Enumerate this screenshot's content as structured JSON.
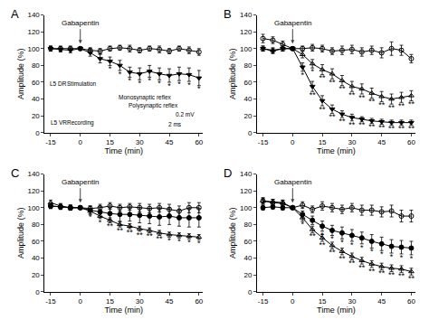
{
  "chart_data": [
    {
      "type": "line",
      "title": "A",
      "x_label": "Time (min)",
      "y_label": "Amplitude (%)",
      "x": [
        -15,
        -10,
        -5,
        0,
        5,
        10,
        15,
        20,
        25,
        30,
        35,
        40,
        45,
        50,
        55,
        60
      ],
      "xlim": [
        -18,
        62
      ],
      "xticks": [
        -15,
        0,
        15,
        30,
        45,
        60
      ],
      "ylim": [
        0,
        140
      ],
      "yticks": [
        0,
        20,
        40,
        60,
        80,
        100,
        120,
        140
      ],
      "grid": false,
      "series": [
        {
          "color": "#000000",
          "marker": "circle-open",
          "values": [
            100,
            100,
            100,
            100,
            98,
            97,
            100,
            101,
            100,
            98,
            100,
            99,
            97,
            100,
            98,
            96
          ],
          "errors": [
            3,
            3,
            3,
            2,
            3,
            3,
            3,
            3,
            4,
            3,
            3,
            4,
            3,
            3,
            4,
            4
          ]
        },
        {
          "color": "#000000",
          "marker": "triangle-down",
          "values": [
            100,
            99,
            98,
            100,
            95,
            88,
            85,
            80,
            72,
            70,
            73,
            70,
            68,
            70,
            69,
            65
          ],
          "errors": [
            3,
            3,
            3,
            2,
            4,
            5,
            5,
            6,
            6,
            7,
            7,
            7,
            8,
            8,
            8,
            9
          ],
          "significance": [
            null,
            null,
            null,
            null,
            null,
            null,
            "*",
            "*",
            "*",
            "*",
            "*",
            "*",
            "*",
            "*",
            "*",
            "*"
          ]
        }
      ],
      "annotations": [
        {
          "text": "Gabapentin",
          "x": 0,
          "y": 106,
          "arrow": true
        },
        {
          "text": "L5 DR",
          "x": -11,
          "y": 58
        },
        {
          "text": "Stimulation",
          "x": 1,
          "y": 58
        },
        {
          "text": "L5 VR",
          "x": -11,
          "y": 12
        },
        {
          "text": "Recording",
          "x": 0,
          "y": 12
        },
        {
          "text": "Monosynaptic reflex",
          "x": 33,
          "y": 42
        },
        {
          "text": "Polysynaptic reflex",
          "x": 37,
          "y": 32
        },
        {
          "text": "0.2 mV",
          "x": 53,
          "y": 22
        },
        {
          "text": "2 ms",
          "x": 48,
          "y": 10
        }
      ]
    },
    {
      "type": "line",
      "title": "B",
      "x_label": "Time (min)",
      "y_label": "Amplitude (%)",
      "x": [
        -15,
        -10,
        -5,
        0,
        5,
        10,
        15,
        20,
        25,
        30,
        35,
        40,
        45,
        50,
        55,
        60
      ],
      "xlim": [
        -18,
        62
      ],
      "xticks": [
        -15,
        0,
        15,
        30,
        45,
        60
      ],
      "ylim": [
        0,
        140
      ],
      "yticks": [
        0,
        20,
        40,
        60,
        80,
        100,
        120,
        140
      ],
      "grid": false,
      "series": [
        {
          "color": "#000000",
          "marker": "circle-open",
          "values": [
            112,
            110,
            105,
            100,
            100,
            101,
            100,
            97,
            98,
            99,
            96,
            98,
            95,
            100,
            98,
            88
          ],
          "errors": [
            5,
            4,
            4,
            2,
            3,
            4,
            4,
            4,
            5,
            5,
            5,
            5,
            6,
            8,
            6,
            5
          ]
        },
        {
          "color": "#000000",
          "marker": "triangle-up-open",
          "values": [
            100,
            98,
            100,
            100,
            93,
            82,
            75,
            70,
            62,
            55,
            52,
            47,
            43,
            40,
            42,
            44
          ],
          "errors": [
            3,
            3,
            3,
            2,
            4,
            5,
            6,
            6,
            6,
            6,
            6,
            6,
            6,
            6,
            6,
            6
          ],
          "significance": [
            null,
            null,
            null,
            null,
            null,
            "*",
            "**",
            "**",
            "**",
            "**",
            "**",
            "**",
            "**",
            "**",
            "**",
            "**"
          ]
        },
        {
          "color": "#000000",
          "marker": "triangle-down",
          "values": [
            100,
            97,
            100,
            100,
            78,
            55,
            38,
            28,
            22,
            18,
            16,
            14,
            13,
            12,
            12,
            12
          ],
          "errors": [
            3,
            3,
            3,
            2,
            5,
            6,
            6,
            5,
            4,
            4,
            3,
            3,
            3,
            3,
            3,
            3
          ],
          "significance": [
            null,
            null,
            null,
            null,
            "*",
            "**",
            "**",
            "**",
            "**",
            "**",
            "**",
            "**",
            "**",
            "**",
            "**",
            "**"
          ]
        }
      ],
      "annotations": [
        {
          "text": "Gabapentin",
          "x": 0,
          "y": 106,
          "arrow": true
        }
      ]
    },
    {
      "type": "line",
      "title": "C",
      "x_label": "Time (min)",
      "y_label": "Amplitude (%)",
      "x": [
        -15,
        -10,
        -5,
        0,
        5,
        10,
        15,
        20,
        25,
        30,
        35,
        40,
        45,
        50,
        55,
        60
      ],
      "xlim": [
        -18,
        62
      ],
      "xticks": [
        -15,
        0,
        15,
        30,
        45,
        60
      ],
      "ylim": [
        0,
        140
      ],
      "yticks": [
        0,
        20,
        40,
        60,
        80,
        100,
        120,
        140
      ],
      "grid": false,
      "series": [
        {
          "color": "#000000",
          "marker": "circle-open",
          "values": [
            102,
            101,
            100,
            100,
            99,
            100,
            102,
            100,
            101,
            100,
            99,
            100,
            98,
            96,
            100,
            100
          ],
          "errors": [
            3,
            3,
            3,
            2,
            3,
            4,
            4,
            4,
            4,
            5,
            5,
            5,
            6,
            6,
            6,
            6
          ]
        },
        {
          "color": "#000000",
          "marker": "circle",
          "values": [
            102,
            101,
            100,
            100,
            97,
            95,
            93,
            92,
            92,
            91,
            90,
            89,
            90,
            88,
            88,
            88
          ],
          "errors": [
            3,
            3,
            3,
            2,
            5,
            6,
            7,
            8,
            8,
            9,
            9,
            10,
            10,
            10,
            11,
            11
          ]
        },
        {
          "color": "#000000",
          "marker": "triangle-up-open",
          "values": [
            106,
            102,
            100,
            100,
            96,
            90,
            85,
            80,
            78,
            75,
            73,
            70,
            68,
            67,
            66,
            65
          ],
          "errors": [
            3,
            3,
            3,
            2,
            3,
            3,
            3,
            3,
            3,
            3,
            3,
            3,
            3,
            3,
            3,
            3
          ],
          "significance": [
            null,
            null,
            null,
            null,
            "*",
            "*",
            "**",
            "**",
            "**",
            "**",
            "**",
            "**",
            "*",
            "*",
            "*",
            "*"
          ]
        }
      ],
      "annotations": [
        {
          "text": "Gabapentin",
          "x": 0,
          "y": 106,
          "arrow": true
        }
      ]
    },
    {
      "type": "line",
      "title": "D",
      "x_label": "Time (min)",
      "y_label": "Amplitude (%)",
      "x": [
        -15,
        -10,
        -5,
        0,
        5,
        10,
        15,
        20,
        25,
        30,
        35,
        40,
        45,
        50,
        55,
        60
      ],
      "xlim": [
        -18,
        62
      ],
      "xticks": [
        -15,
        0,
        15,
        30,
        45,
        60
      ],
      "ylim": [
        0,
        140
      ],
      "yticks": [
        0,
        20,
        40,
        60,
        80,
        100,
        120,
        140
      ],
      "grid": false,
      "series": [
        {
          "color": "#000000",
          "marker": "circle-open",
          "values": [
            108,
            106,
            105,
            100,
            103,
            98,
            102,
            100,
            98,
            100,
            97,
            97,
            95,
            96,
            90,
            90
          ],
          "errors": [
            4,
            4,
            4,
            2,
            4,
            4,
            5,
            5,
            5,
            5,
            6,
            6,
            6,
            7,
            7,
            7
          ]
        },
        {
          "color": "#000000",
          "marker": "circle",
          "values": [
            100,
            101,
            100,
            100,
            92,
            85,
            78,
            73,
            70,
            67,
            64,
            60,
            57,
            54,
            53,
            52
          ],
          "errors": [
            3,
            3,
            3,
            2,
            4,
            5,
            6,
            6,
            7,
            7,
            7,
            8,
            8,
            8,
            8,
            8
          ],
          "significance": [
            null,
            null,
            null,
            null,
            null,
            null,
            "*",
            "*",
            "*",
            "*",
            "*",
            "*",
            "*",
            "*",
            "*",
            "*"
          ]
        },
        {
          "color": "#000000",
          "marker": "triangle-up-open",
          "values": [
            108,
            107,
            106,
            100,
            88,
            74,
            64,
            55,
            48,
            42,
            37,
            33,
            30,
            28,
            27,
            24
          ],
          "errors": [
            3,
            3,
            3,
            2,
            4,
            4,
            4,
            4,
            4,
            4,
            4,
            4,
            4,
            4,
            4,
            4
          ],
          "significance": [
            null,
            null,
            null,
            null,
            "*",
            "**",
            "**",
            "**",
            "**",
            "**",
            "**",
            "**",
            "**",
            "**",
            "**",
            "**"
          ]
        }
      ],
      "annotations": [
        {
          "text": "Gabapentin",
          "x": 0,
          "y": 106,
          "arrow": true
        }
      ]
    }
  ]
}
